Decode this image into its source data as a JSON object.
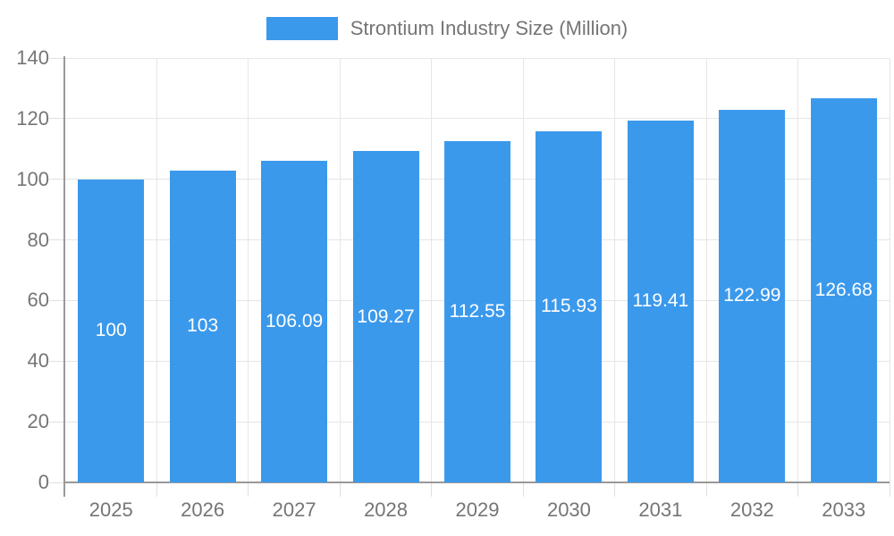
{
  "legend": {
    "label": "Strontium Industry Size (Million)",
    "swatch_color": "#3b99ec"
  },
  "chart_data": {
    "type": "bar",
    "title": "",
    "categories": [
      "2025",
      "2026",
      "2027",
      "2028",
      "2029",
      "2030",
      "2031",
      "2032",
      "2033"
    ],
    "series": [
      {
        "name": "Strontium Industry Size (Million)",
        "values": [
          100,
          103,
          106.09,
          109.27,
          112.55,
          115.93,
          119.41,
          122.99,
          126.68
        ],
        "value_labels": [
          "100",
          "103",
          "106.09",
          "109.27",
          "112.55",
          "115.93",
          "119.41",
          "122.99",
          "126.68"
        ]
      }
    ],
    "xlabel": "",
    "ylabel": "",
    "ylim": [
      0,
      140
    ],
    "yticks": [
      0,
      20,
      40,
      60,
      80,
      100,
      120,
      140
    ],
    "grid": true,
    "legend_position": "top",
    "bar_color": "#3b99ec",
    "value_label_color": "#ffffff",
    "axis_text_color": "#757575",
    "gridline_color": "#e6e6e6",
    "axis_line_color": "#999999"
  }
}
